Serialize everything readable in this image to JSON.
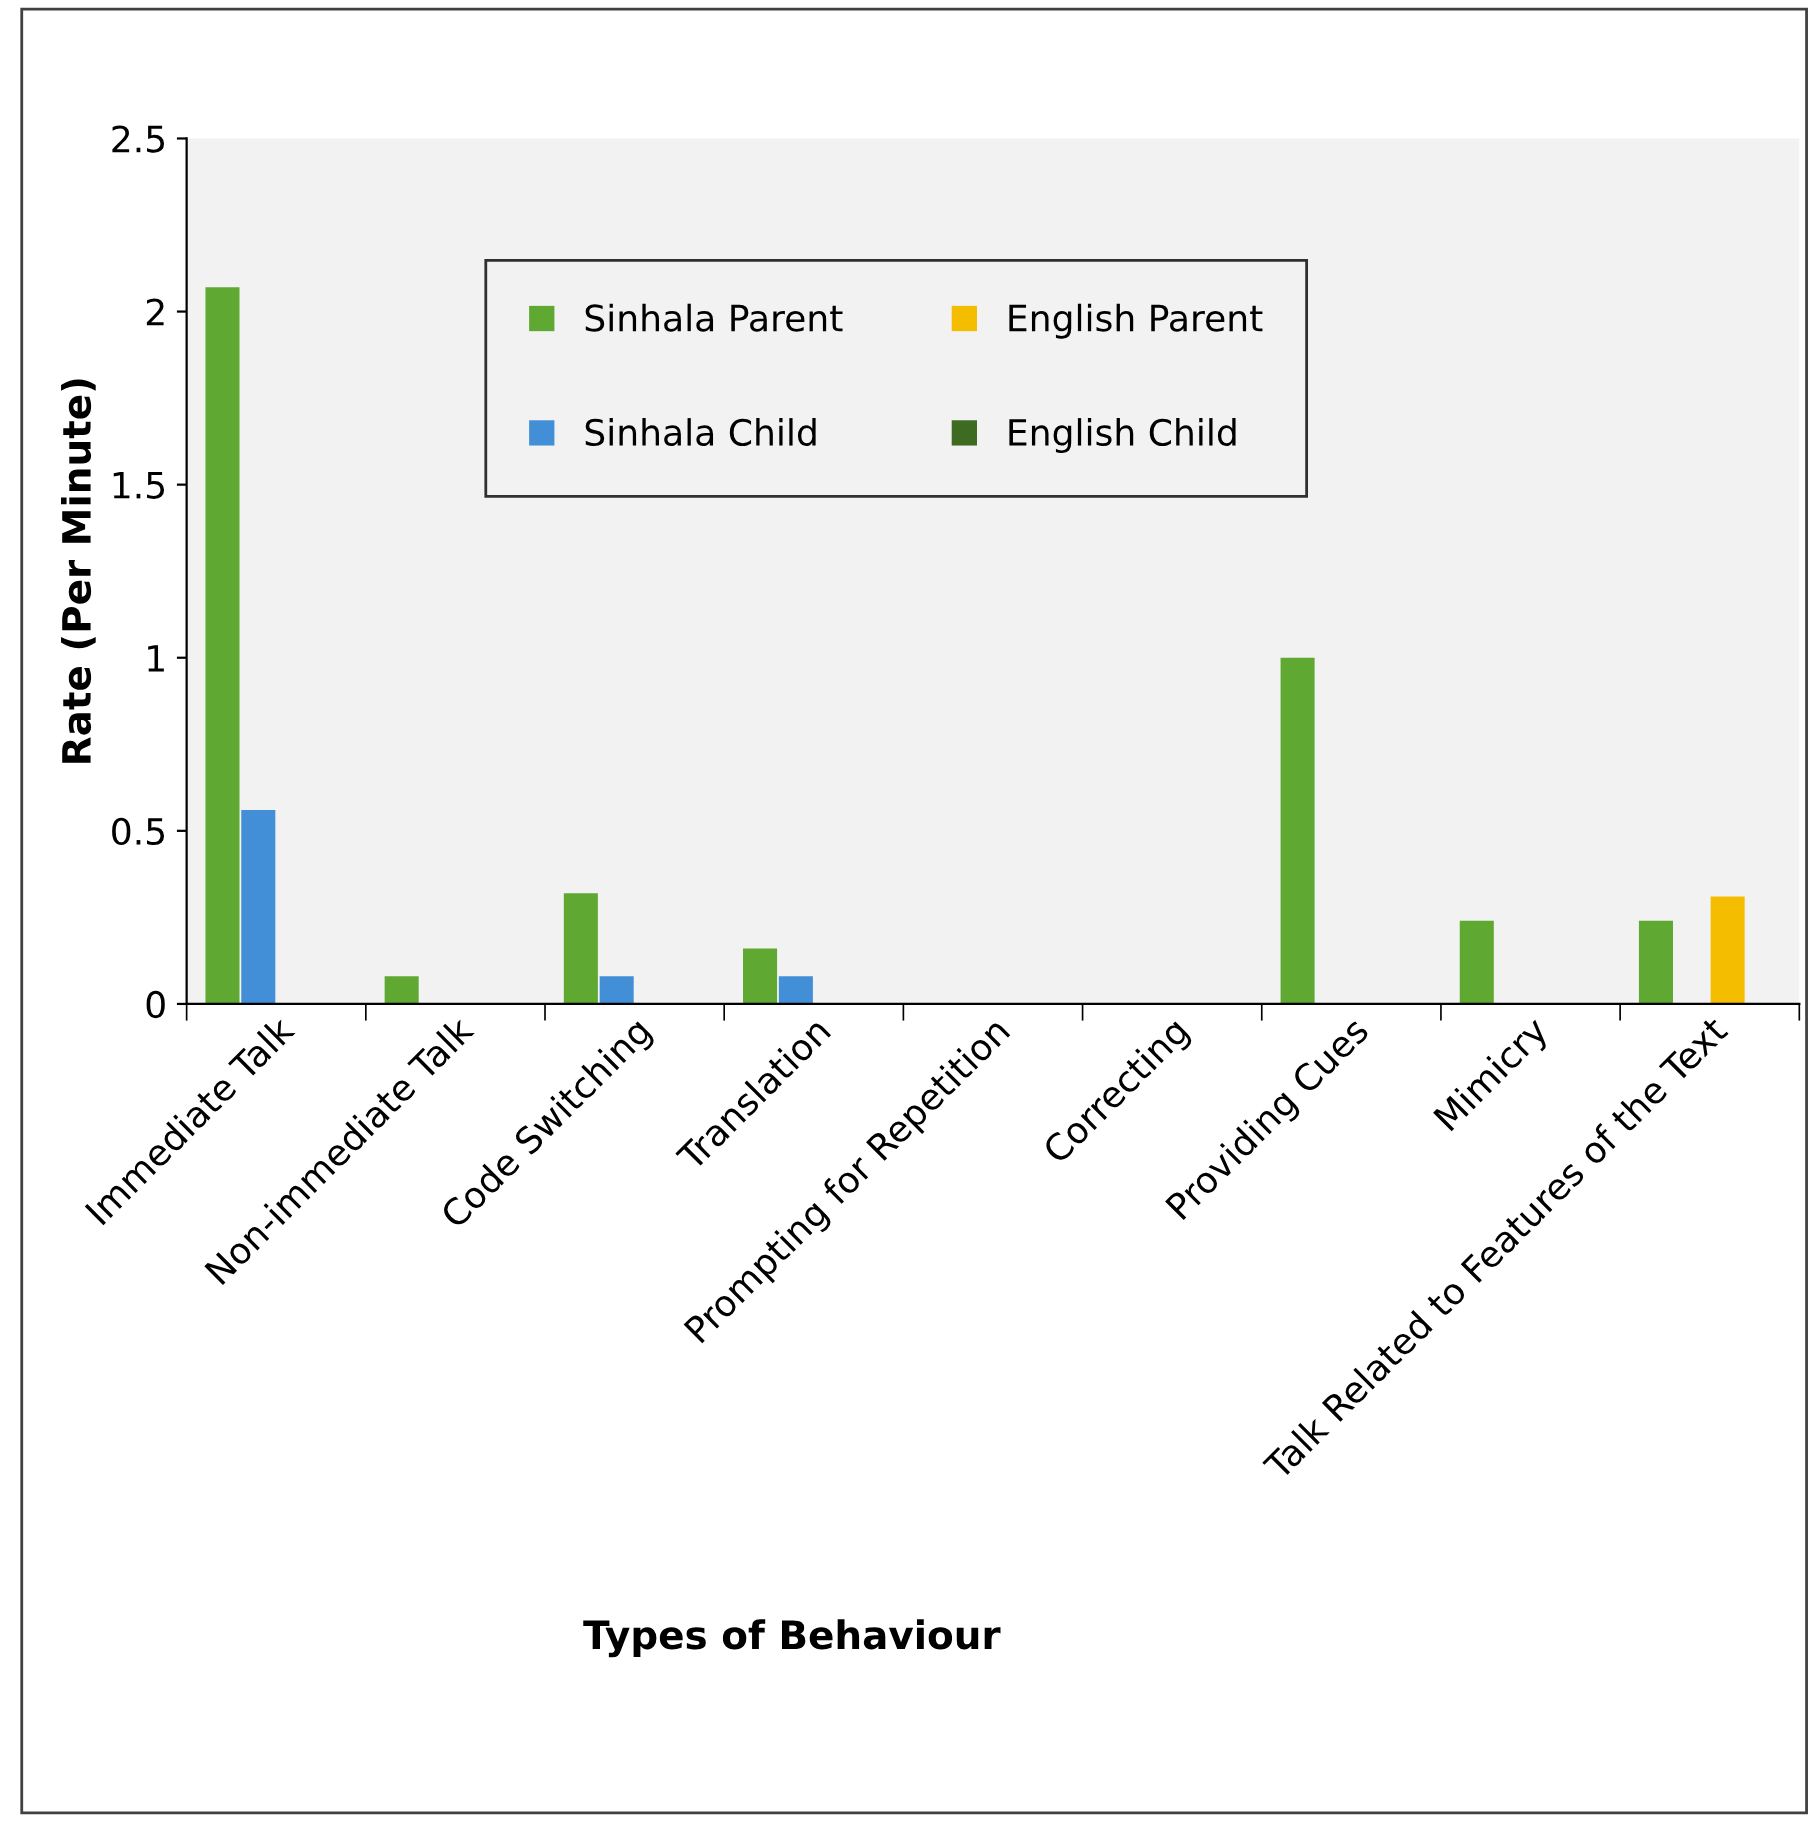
{
  "chart_data": {
    "type": "bar",
    "xlabel": "Types of Behaviour",
    "ylabel": "Rate (Per Minute)",
    "categories": [
      "Immediate Talk",
      "Non-immediate Talk",
      "Code Switching",
      "Translation",
      "Prompting for Repetition",
      "Correcting",
      "Providing Cues",
      "Mimicry",
      "Talk Related to Features of the Text"
    ],
    "series": [
      {
        "name": "Sinhala Parent",
        "color": "#5fa831",
        "values": [
          2.07,
          0.08,
          0.32,
          0.16,
          0,
          0,
          1.0,
          0.24,
          0.24
        ]
      },
      {
        "name": "Sinhala Child",
        "color": "#428fd8",
        "values": [
          0.56,
          0,
          0.08,
          0.08,
          0,
          0,
          0,
          0,
          0
        ]
      },
      {
        "name": "English Parent",
        "color": "#f5bd00",
        "values": [
          0,
          0,
          0,
          0,
          0,
          0,
          0,
          0,
          0.31
        ]
      },
      {
        "name": "English Child",
        "color": "#3d6b22",
        "values": [
          0,
          0,
          0,
          0,
          0,
          0,
          0,
          0,
          0
        ]
      }
    ],
    "ylim": [
      0,
      2.5
    ],
    "yticks": [
      0,
      0.5,
      1,
      1.5,
      2,
      2.5
    ],
    "grid": false,
    "legend": "top"
  }
}
